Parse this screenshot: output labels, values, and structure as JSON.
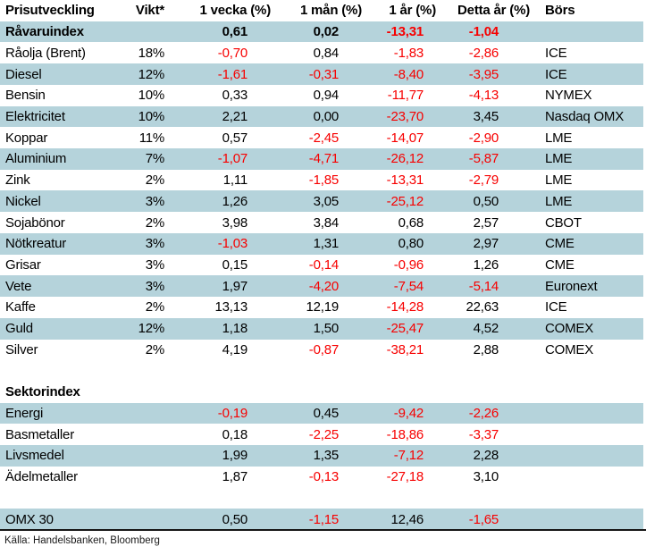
{
  "colors": {
    "row_shade": "#b5d3db",
    "negative_value": "#f70000",
    "text": "#000000"
  },
  "table": {
    "columns": {
      "name": "Prisutveckling",
      "weight": "Vikt*",
      "week": "1 vecka (%)",
      "month": "1 mån (%)",
      "year": "1 år (%)",
      "ytd": "Detta år (%)",
      "exchange": "Börs"
    },
    "rows": [
      {
        "label": "Råvaruindex",
        "weight": "",
        "values": [
          "0,61",
          "0,02",
          "-13,31",
          "-1,04"
        ],
        "exchange": "",
        "bold": true,
        "shade": true
      },
      {
        "label": "Råolja (Brent)",
        "weight": "18%",
        "values": [
          "-0,70",
          "0,84",
          "-1,83",
          "-2,86"
        ],
        "exchange": "ICE",
        "shade": false
      },
      {
        "label": "Diesel",
        "weight": "12%",
        "values": [
          "-1,61",
          "-0,31",
          "-8,40",
          "-3,95"
        ],
        "exchange": "ICE",
        "shade": true
      },
      {
        "label": "Bensin",
        "weight": "10%",
        "values": [
          "0,33",
          "0,94",
          "-11,77",
          "-4,13"
        ],
        "exchange": "NYMEX",
        "shade": false
      },
      {
        "label": "Elektricitet",
        "weight": "10%",
        "values": [
          "2,21",
          "0,00",
          "-23,70",
          "3,45"
        ],
        "exchange": "Nasdaq OMX",
        "shade": true
      },
      {
        "label": "Koppar",
        "weight": "11%",
        "values": [
          "0,57",
          "-2,45",
          "-14,07",
          "-2,90"
        ],
        "exchange": "LME",
        "shade": false
      },
      {
        "label": "Aluminium",
        "weight": "7%",
        "values": [
          "-1,07",
          "-4,71",
          "-26,12",
          "-5,87"
        ],
        "exchange": "LME",
        "shade": true
      },
      {
        "label": "Zink",
        "weight": "2%",
        "values": [
          "1,11",
          "-1,85",
          "-13,31",
          "-2,79"
        ],
        "exchange": "LME",
        "shade": false
      },
      {
        "label": "Nickel",
        "weight": "3%",
        "values": [
          "1,26",
          "3,05",
          "-25,12",
          "0,50"
        ],
        "exchange": "LME",
        "shade": true
      },
      {
        "label": "Sojabönor",
        "weight": "2%",
        "values": [
          "3,98",
          "3,84",
          "0,68",
          "2,57"
        ],
        "exchange": "CBOT",
        "shade": false
      },
      {
        "label": "Nötkreatur",
        "weight": "3%",
        "values": [
          "-1,03",
          "1,31",
          "0,80",
          "2,97"
        ],
        "exchange": "CME",
        "shade": true
      },
      {
        "label": "Grisar",
        "weight": "3%",
        "values": [
          "0,15",
          "-0,14",
          "-0,96",
          "1,26"
        ],
        "exchange": "CME",
        "shade": false
      },
      {
        "label": "Vete",
        "weight": "3%",
        "values": [
          "1,97",
          "-4,20",
          "-7,54",
          "-5,14"
        ],
        "exchange": "Euronext",
        "shade": true
      },
      {
        "label": "Kaffe",
        "weight": "2%",
        "values": [
          "13,13",
          "12,19",
          "-14,28",
          "22,63"
        ],
        "exchange": "ICE",
        "shade": false
      },
      {
        "label": "Guld",
        "weight": "12%",
        "values": [
          "1,18",
          "1,50",
          "-25,47",
          "4,52"
        ],
        "exchange": "COMEX",
        "shade": true
      },
      {
        "label": "Silver",
        "weight": "2%",
        "values": [
          "4,19",
          "-0,87",
          "-38,21",
          "2,88"
        ],
        "exchange": "COMEX",
        "shade": false
      },
      {
        "type": "spacer"
      },
      {
        "label": "Sektorindex",
        "weight": "",
        "values": [
          "",
          "",
          "",
          ""
        ],
        "exchange": "",
        "bold": true,
        "shade": false
      },
      {
        "label": "Energi",
        "weight": "",
        "values": [
          "-0,19",
          "0,45",
          "-9,42",
          "-2,26"
        ],
        "exchange": "",
        "shade": true
      },
      {
        "label": "Basmetaller",
        "weight": "",
        "values": [
          "0,18",
          "-2,25",
          "-18,86",
          "-3,37"
        ],
        "exchange": "",
        "shade": false
      },
      {
        "label": "Livsmedel",
        "weight": "",
        "values": [
          "1,99",
          "1,35",
          "-7,12",
          "2,28"
        ],
        "exchange": "",
        "shade": true
      },
      {
        "label": "Ädelmetaller",
        "weight": "",
        "values": [
          "1,87",
          "-0,13",
          "-27,18",
          "3,10"
        ],
        "exchange": "",
        "shade": false
      },
      {
        "type": "spacer"
      },
      {
        "label": "OMX 30",
        "weight": "",
        "values": [
          "0,50",
          "-1,15",
          "12,46",
          "-1,65"
        ],
        "exchange": "",
        "shade": true
      }
    ]
  },
  "footer": {
    "source": "Källa: Handelsbanken, Bloomberg"
  }
}
